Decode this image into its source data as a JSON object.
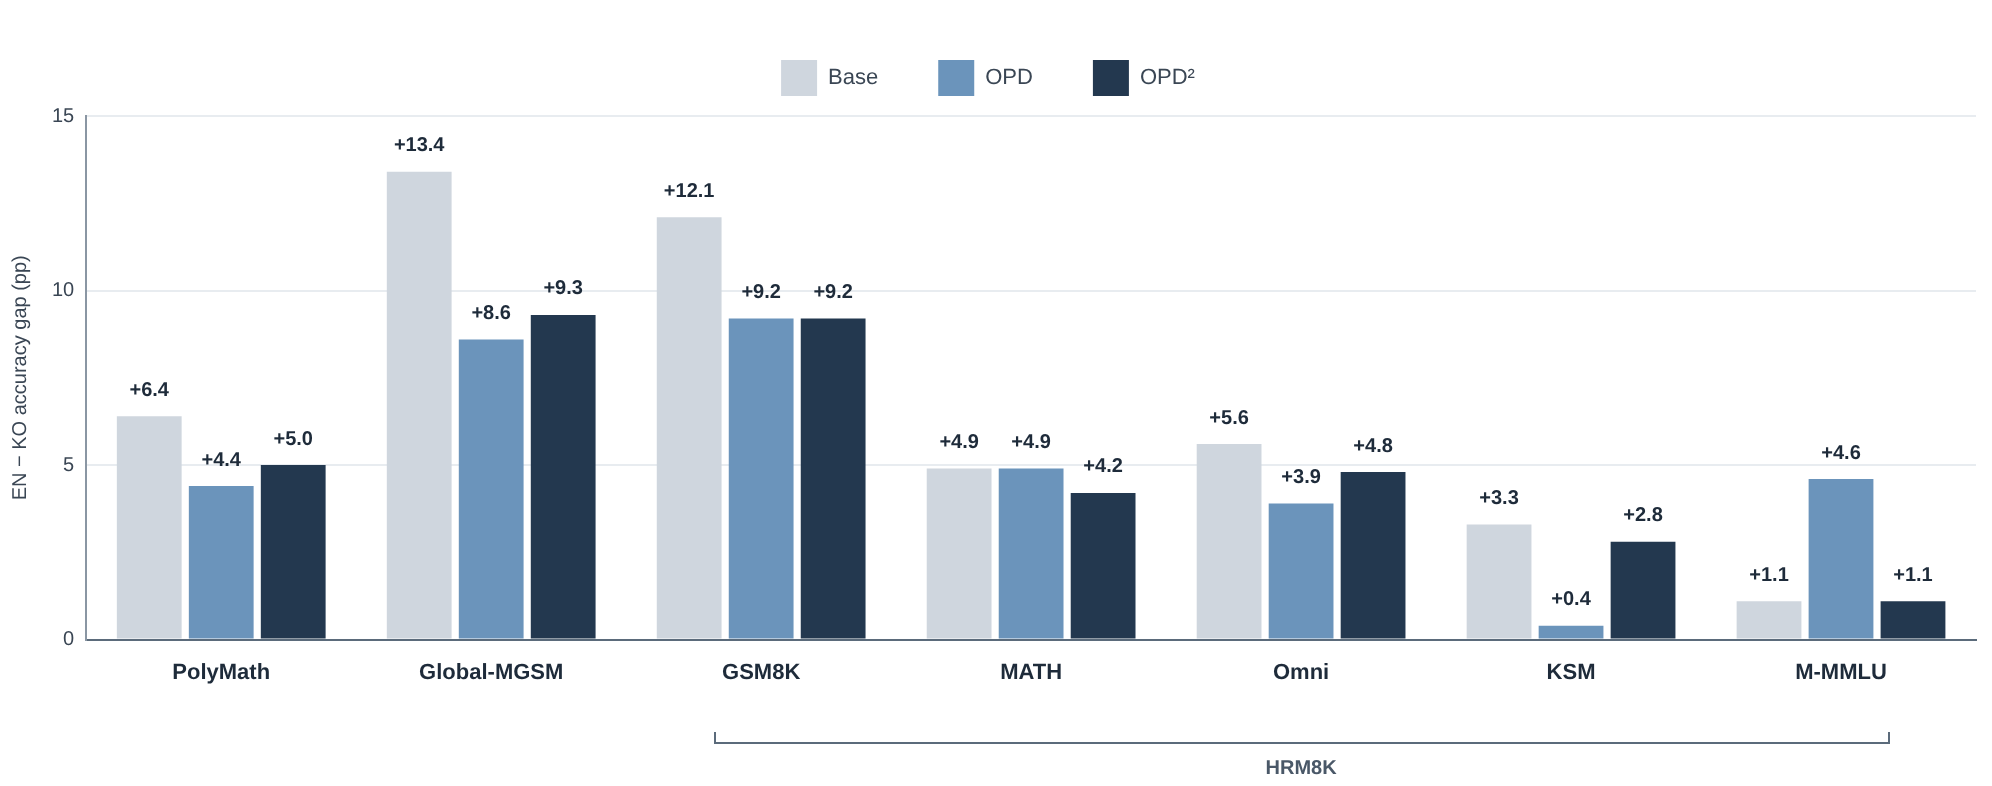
{
  "chart_data": {
    "type": "bar",
    "ylabel": "EN − KO accuracy gap (pp)",
    "categories": [
      "PolyMath",
      "Global-MGSM",
      "GSM8K",
      "MATH",
      "Omni",
      "KSM",
      "M-MMLU"
    ],
    "series": [
      {
        "name": "Base",
        "color": "#cfd6de",
        "values": [
          6.4,
          13.4,
          12.1,
          4.9,
          5.6,
          3.3,
          1.1
        ],
        "value_labels": [
          "+6.4",
          "+13.4",
          "+12.1",
          "+4.9",
          "+5.6",
          "+3.3",
          "+1.1"
        ]
      },
      {
        "name": "OPD",
        "color": "#6b94bb",
        "values": [
          4.4,
          8.6,
          9.2,
          4.9,
          3.9,
          0.4,
          4.6
        ],
        "value_labels": [
          "+4.4",
          "+8.6",
          "+9.2",
          "+4.9",
          "+3.9",
          "+0.4",
          "+4.6"
        ]
      },
      {
        "name": "OPD²",
        "color": "#23384f",
        "values": [
          5.0,
          9.3,
          9.2,
          4.2,
          4.8,
          2.8,
          1.1
        ],
        "value_labels": [
          "+5.0",
          "+9.3",
          "+9.2",
          "+4.2",
          "+4.8",
          "+2.8",
          "+1.1"
        ]
      }
    ],
    "ylim": [
      0,
      15
    ],
    "yticks": [
      0,
      5,
      10,
      15
    ],
    "grid": "y",
    "legend": "top",
    "annotations": [
      "HRM8K"
    ]
  }
}
